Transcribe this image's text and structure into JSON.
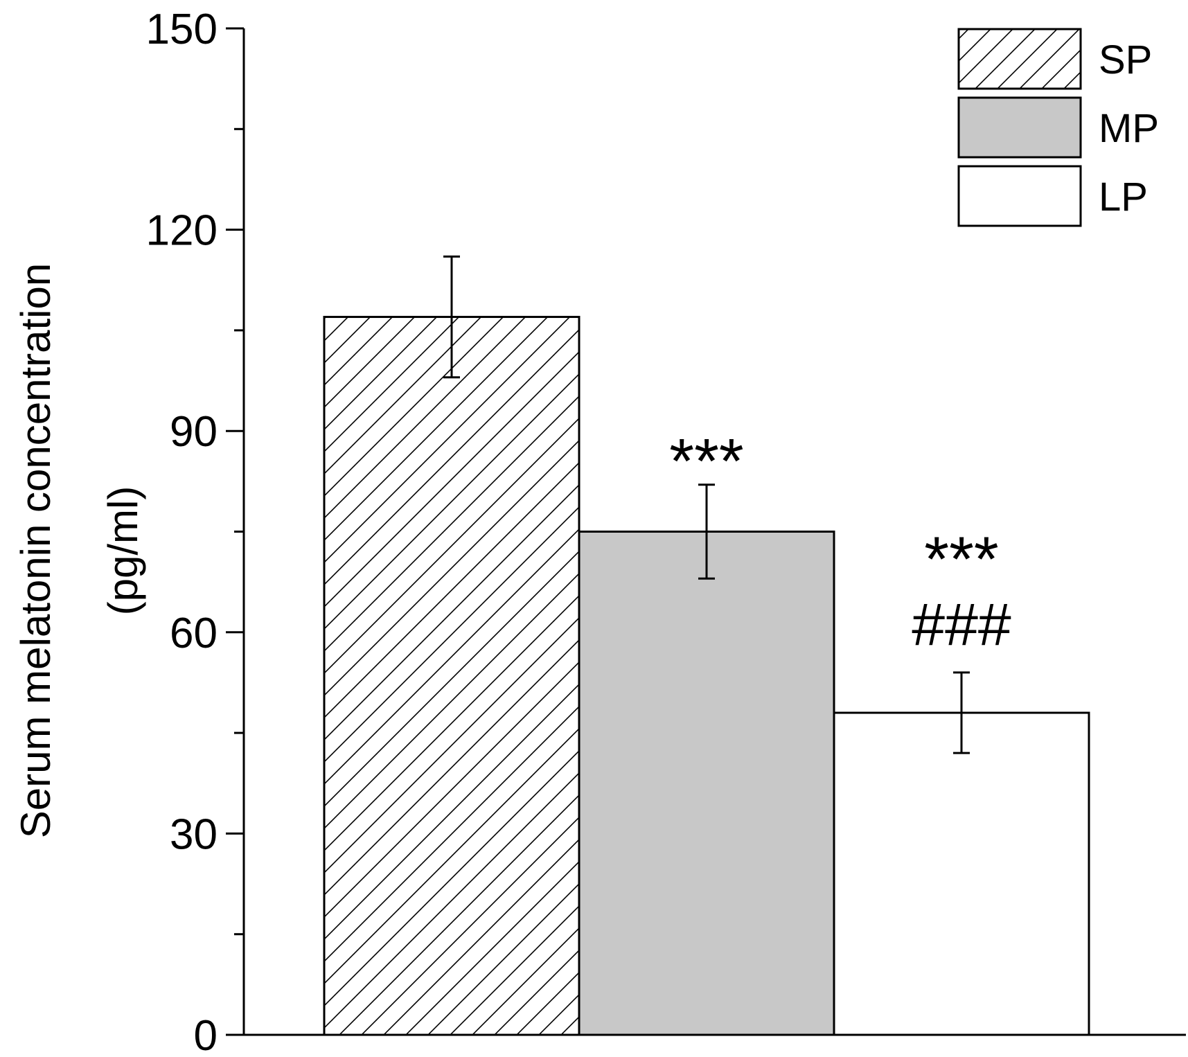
{
  "chart_data": {
    "type": "bar",
    "title": "",
    "xlabel": "",
    "ylabel_line1": "Serum melatonin concentration",
    "ylabel_line2": "(pg/ml)",
    "ylim": [
      0,
      150
    ],
    "yticks": [
      "0",
      "30",
      "60",
      "90",
      "120",
      "150"
    ],
    "categories": [
      "SP",
      "MP",
      "LP"
    ],
    "values": [
      107,
      75,
      48
    ],
    "errors": [
      9,
      7,
      6
    ],
    "fills": [
      "hatch",
      "#c8c8c8",
      "#ffffff"
    ],
    "annotations": [
      {
        "bar": 1,
        "lines": [
          "***"
        ]
      },
      {
        "bar": 2,
        "lines": [
          "***",
          "###"
        ]
      }
    ],
    "legend": {
      "position": "top-right",
      "entries": [
        "SP",
        "MP",
        "LP"
      ]
    },
    "grid": false
  }
}
